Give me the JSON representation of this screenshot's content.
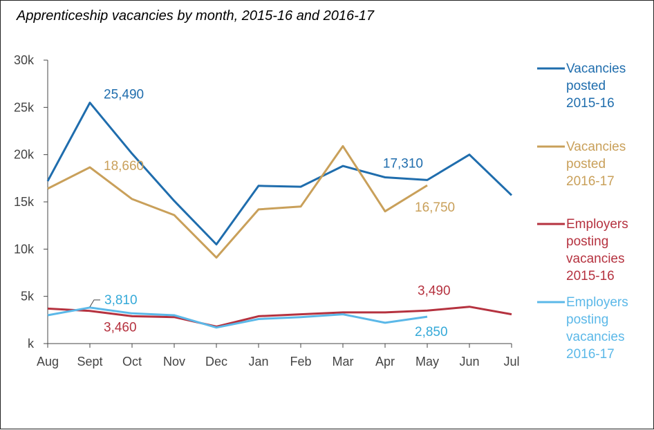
{
  "chart_data": {
    "type": "line",
    "title": "Apprenticeship vacancies by month, 2015-16 and 2016-17",
    "xlabel": "",
    "ylabel": "",
    "categories": [
      "Aug",
      "Sept",
      "Oct",
      "Nov",
      "Dec",
      "Jan",
      "Feb",
      "Mar",
      "Apr",
      "May",
      "Jun",
      "Jul"
    ],
    "yticks": [
      {
        "value": 0,
        "label": "k"
      },
      {
        "value": 5000,
        "label": "5k"
      },
      {
        "value": 10000,
        "label": "10k"
      },
      {
        "value": 15000,
        "label": "15k"
      },
      {
        "value": 20000,
        "label": "20k"
      },
      {
        "value": 25000,
        "label": "25k"
      },
      {
        "value": 30000,
        "label": "30k"
      }
    ],
    "ylim": [
      0,
      30000
    ],
    "grid": false,
    "legend_position": "right",
    "series": [
      {
        "name": "Vacancies posted 2015-16",
        "legend_lines": [
          "Vacancies",
          "posted",
          "2015-16"
        ],
        "color": "#1F6DAD",
        "values": [
          17200,
          25490,
          20100,
          15100,
          10500,
          16700,
          16600,
          18800,
          17600,
          17310,
          20000,
          15700
        ]
      },
      {
        "name": "Vacancies posted 2016-17",
        "legend_lines": [
          "Vacancies",
          "posted",
          "2016-17"
        ],
        "color": "#C9A05A",
        "values": [
          16400,
          18660,
          15300,
          13600,
          9100,
          14200,
          14500,
          20900,
          14000,
          16750,
          null,
          null
        ]
      },
      {
        "name": "Employers posting vacancies 2015-16",
        "legend_lines": [
          "Employers",
          "posting",
          "vacancies",
          "2015-16"
        ],
        "color": "#B5323F",
        "values": [
          3700,
          3460,
          2900,
          2800,
          1800,
          2900,
          3100,
          3300,
          3300,
          3490,
          3900,
          3100
        ]
      },
      {
        "name": "Employers posting vacancies 2016-17",
        "legend_lines": [
          "Employers",
          "posting",
          "vacancies",
          "2016-17"
        ],
        "color": "#5BB8E8",
        "values": [
          3000,
          3810,
          3200,
          3000,
          1700,
          2600,
          2800,
          3100,
          2200,
          2850,
          null,
          null
        ]
      }
    ],
    "annotations": [
      {
        "text": "25,490",
        "series": 0,
        "index": 1,
        "color": "#1F6DAD"
      },
      {
        "text": "17,310",
        "series": 0,
        "index": 9,
        "color": "#1F6DAD"
      },
      {
        "text": "18,660",
        "series": 1,
        "index": 1,
        "color": "#C9A05A"
      },
      {
        "text": "16,750",
        "series": 1,
        "index": 9,
        "color": "#C9A05A"
      },
      {
        "text": "3,460",
        "series": 2,
        "index": 1,
        "color": "#B5323F"
      },
      {
        "text": "3,490",
        "series": 2,
        "index": 9,
        "color": "#B5323F"
      },
      {
        "text": "3,810",
        "series": 3,
        "index": 1,
        "color": "#34A9D8"
      },
      {
        "text": "2,850",
        "series": 3,
        "index": 9,
        "color": "#34A9D8"
      }
    ]
  }
}
